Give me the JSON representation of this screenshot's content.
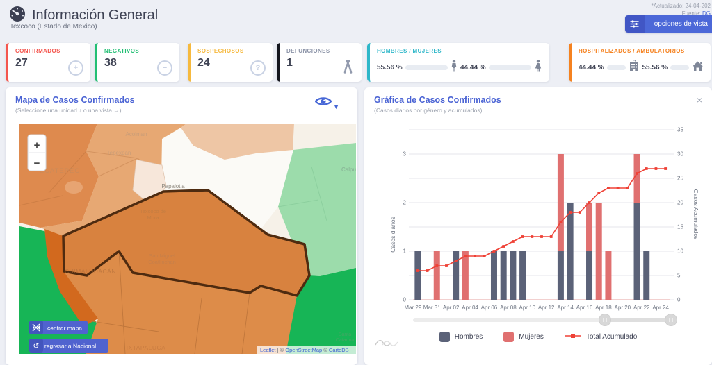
{
  "header": {
    "title": "Información General",
    "subtitle": "Texcoco (Estado de Mexico)",
    "updated": "*Actualizado: 24-04-202",
    "source_label": "Fuente: ",
    "source_link": "DG",
    "options_button": "opciones de vista"
  },
  "stats": {
    "confirmados": {
      "label": "CONFIRMADOS",
      "value": "27",
      "color": "#f4564e",
      "icon_glyph": "+"
    },
    "negativos": {
      "label": "NEGATIVOS",
      "value": "38",
      "color": "#23bf74",
      "icon_glyph": "−"
    },
    "sospechosos": {
      "label": "SOSPECHOSOS",
      "value": "24",
      "color": "#f6b93e",
      "icon_glyph": "?"
    },
    "defunciones": {
      "label": "DEFUNCIONES",
      "value": "1",
      "color": "#15171e"
    },
    "genero": {
      "label": "HOMBRES / MUJERES",
      "color": "#2eb7c9",
      "hombres_pct": "55.56 %",
      "mujeres_pct": "44.44 %",
      "hombres_pct_num": 55.56,
      "mujeres_pct_num": 44.44
    },
    "hospital": {
      "label": "HOSPITALIZADOS / AMBULATORIOS",
      "color": "#f58220",
      "hospitalizados_pct": "44.44 %",
      "ambulatorios_pct": "55.56 %",
      "hospitalizados_pct_num": 44.44,
      "ambulatorios_pct_num": 55.56
    }
  },
  "map_panel": {
    "title": "Mapa de Casos Confirmados",
    "subtitle": "(Seleccione una unidad ↓ o una vista →)",
    "zoom_in": "+",
    "zoom_out": "−",
    "center_button": "centrar mapa",
    "back_button": "regresar a Nacional",
    "back_icon": "↺",
    "attribution": {
      "leaflet": "Leaflet",
      "sep1": " | © ",
      "osm": "OpenStreetMap",
      "sep2": " © ",
      "carto": "CartoDB"
    },
    "labels": {
      "acolman": "Acolman",
      "tepexpan": "Tepexpan",
      "ecatepec": "ECATEPEC",
      "papalotla": "Papalotla",
      "calpulalpan": "Calpu",
      "texcoco_l1": "Texcoco de",
      "texcoco_l2": "Mora",
      "sanmiguel_l1": "San Miguel",
      "sanmiguel_l2": "Coatlinchan",
      "chimalhuacan": "CHIMALHUACÁN",
      "ixtapaluca": "IXTAPALUCA",
      "santacatarina_l1": "Santa",
      "santacatarina_l2": "Catarina"
    }
  },
  "chart_panel": {
    "title": "Gráfica de Casos Confirmados",
    "subtitle": "(Casos diarios por género y acumulados)",
    "close": "×"
  },
  "chart_data": {
    "type": "bar",
    "stacked": true,
    "categories": [
      "Mar 29",
      "Mar 30",
      "Mar 31",
      "Apr 01",
      "Apr 02",
      "Apr 03",
      "Apr 04",
      "Apr 05",
      "Apr 06",
      "Apr 07",
      "Apr 08",
      "Apr 09",
      "Apr 10",
      "Apr 11",
      "Apr 12",
      "Apr 13",
      "Apr 14",
      "Apr 15",
      "Apr 16",
      "Apr 17",
      "Apr 18",
      "Apr 19",
      "Apr 20",
      "Apr 21",
      "Apr 22",
      "Apr 23",
      "Apr 24"
    ],
    "series": [
      {
        "name": "Hombres",
        "color": "#5b6278",
        "values": [
          1,
          0,
          0,
          0,
          1,
          0,
          0,
          0,
          1,
          1,
          1,
          1,
          0,
          0,
          0,
          1,
          2,
          0,
          1,
          0,
          0,
          0,
          0,
          2,
          1,
          0,
          0
        ]
      },
      {
        "name": "Mujeres",
        "color": "#e07070",
        "values": [
          0,
          0,
          1,
          0,
          0,
          1,
          0,
          0,
          0,
          0,
          0,
          0,
          0,
          0,
          0,
          2,
          0,
          0,
          1,
          2,
          1,
          0,
          0,
          1,
          0,
          0,
          0
        ]
      }
    ],
    "line_series": {
      "name": "Total Acumulado",
      "color": "#ef4136",
      "values": [
        6,
        6,
        7,
        7,
        8,
        9,
        9,
        9,
        10,
        11,
        12,
        13,
        13,
        13,
        13,
        16,
        18,
        18,
        20,
        22,
        23,
        23,
        23,
        26,
        27,
        27,
        27
      ]
    },
    "ylabel_left": "Casos diarios",
    "ylabel_right": "Casos Acumulados",
    "ylim_left": [
      0,
      3.5
    ],
    "ylim_right": [
      0,
      35
    ],
    "yticks_left": [
      0,
      1,
      2,
      3
    ],
    "yticks_right": [
      0,
      5,
      10,
      15,
      20,
      25,
      30,
      35
    ],
    "xtick_every": 2,
    "grid": true,
    "legend_position": "bottom"
  }
}
